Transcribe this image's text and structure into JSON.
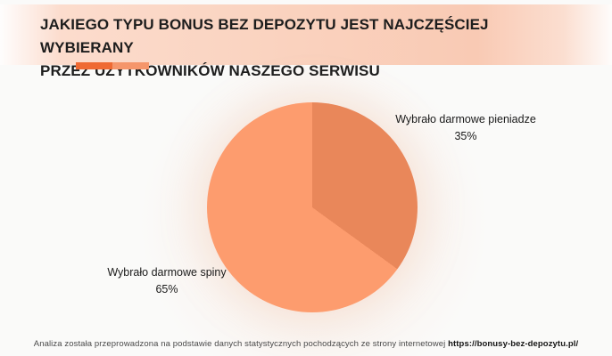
{
  "header": {
    "title_line1": "JAKIEGO TYPU BONUS BEZ DEPOZYTU JEST NAJCZĘŚCIEJ WYBIERANY",
    "title_line2": "PRZEZ UŻYTKOWNIKÓW NASZEGO SERWISU",
    "band_gradient_peach": "#f9cab4"
  },
  "legend": {
    "swatches": [
      {
        "name": "dark-orange",
        "color": "#ef6a33"
      },
      {
        "name": "light-orange",
        "color": "#f5966b"
      }
    ]
  },
  "chart_data": {
    "type": "pie",
    "title": "JAKIEGO TYPU BONUS BEZ DEPOZYTU JEST NAJCZĘŚCIEJ WYBIERANY PRZEZ UŻYTKOWNIKÓW NASZEGO SERWISU",
    "start_angle_deg": 0,
    "direction": "clockwise",
    "legend_position": "none",
    "labels_outside": true,
    "slices": [
      {
        "label": "Wybrało darmowe pieniadze",
        "value_pct": 35,
        "pct_label": "35%",
        "color": "#e9875a"
      },
      {
        "label": "Wybrało darmowe spiny",
        "value_pct": 65,
        "pct_label": "65%",
        "color": "#fd9c6e"
      }
    ]
  },
  "footer": {
    "text": "Analiza została przeprowadzona na podstawie danych statystycznych pochodzących ze strony internetowej ",
    "url": "https://bonusy-bez-depozytu.pl/"
  }
}
